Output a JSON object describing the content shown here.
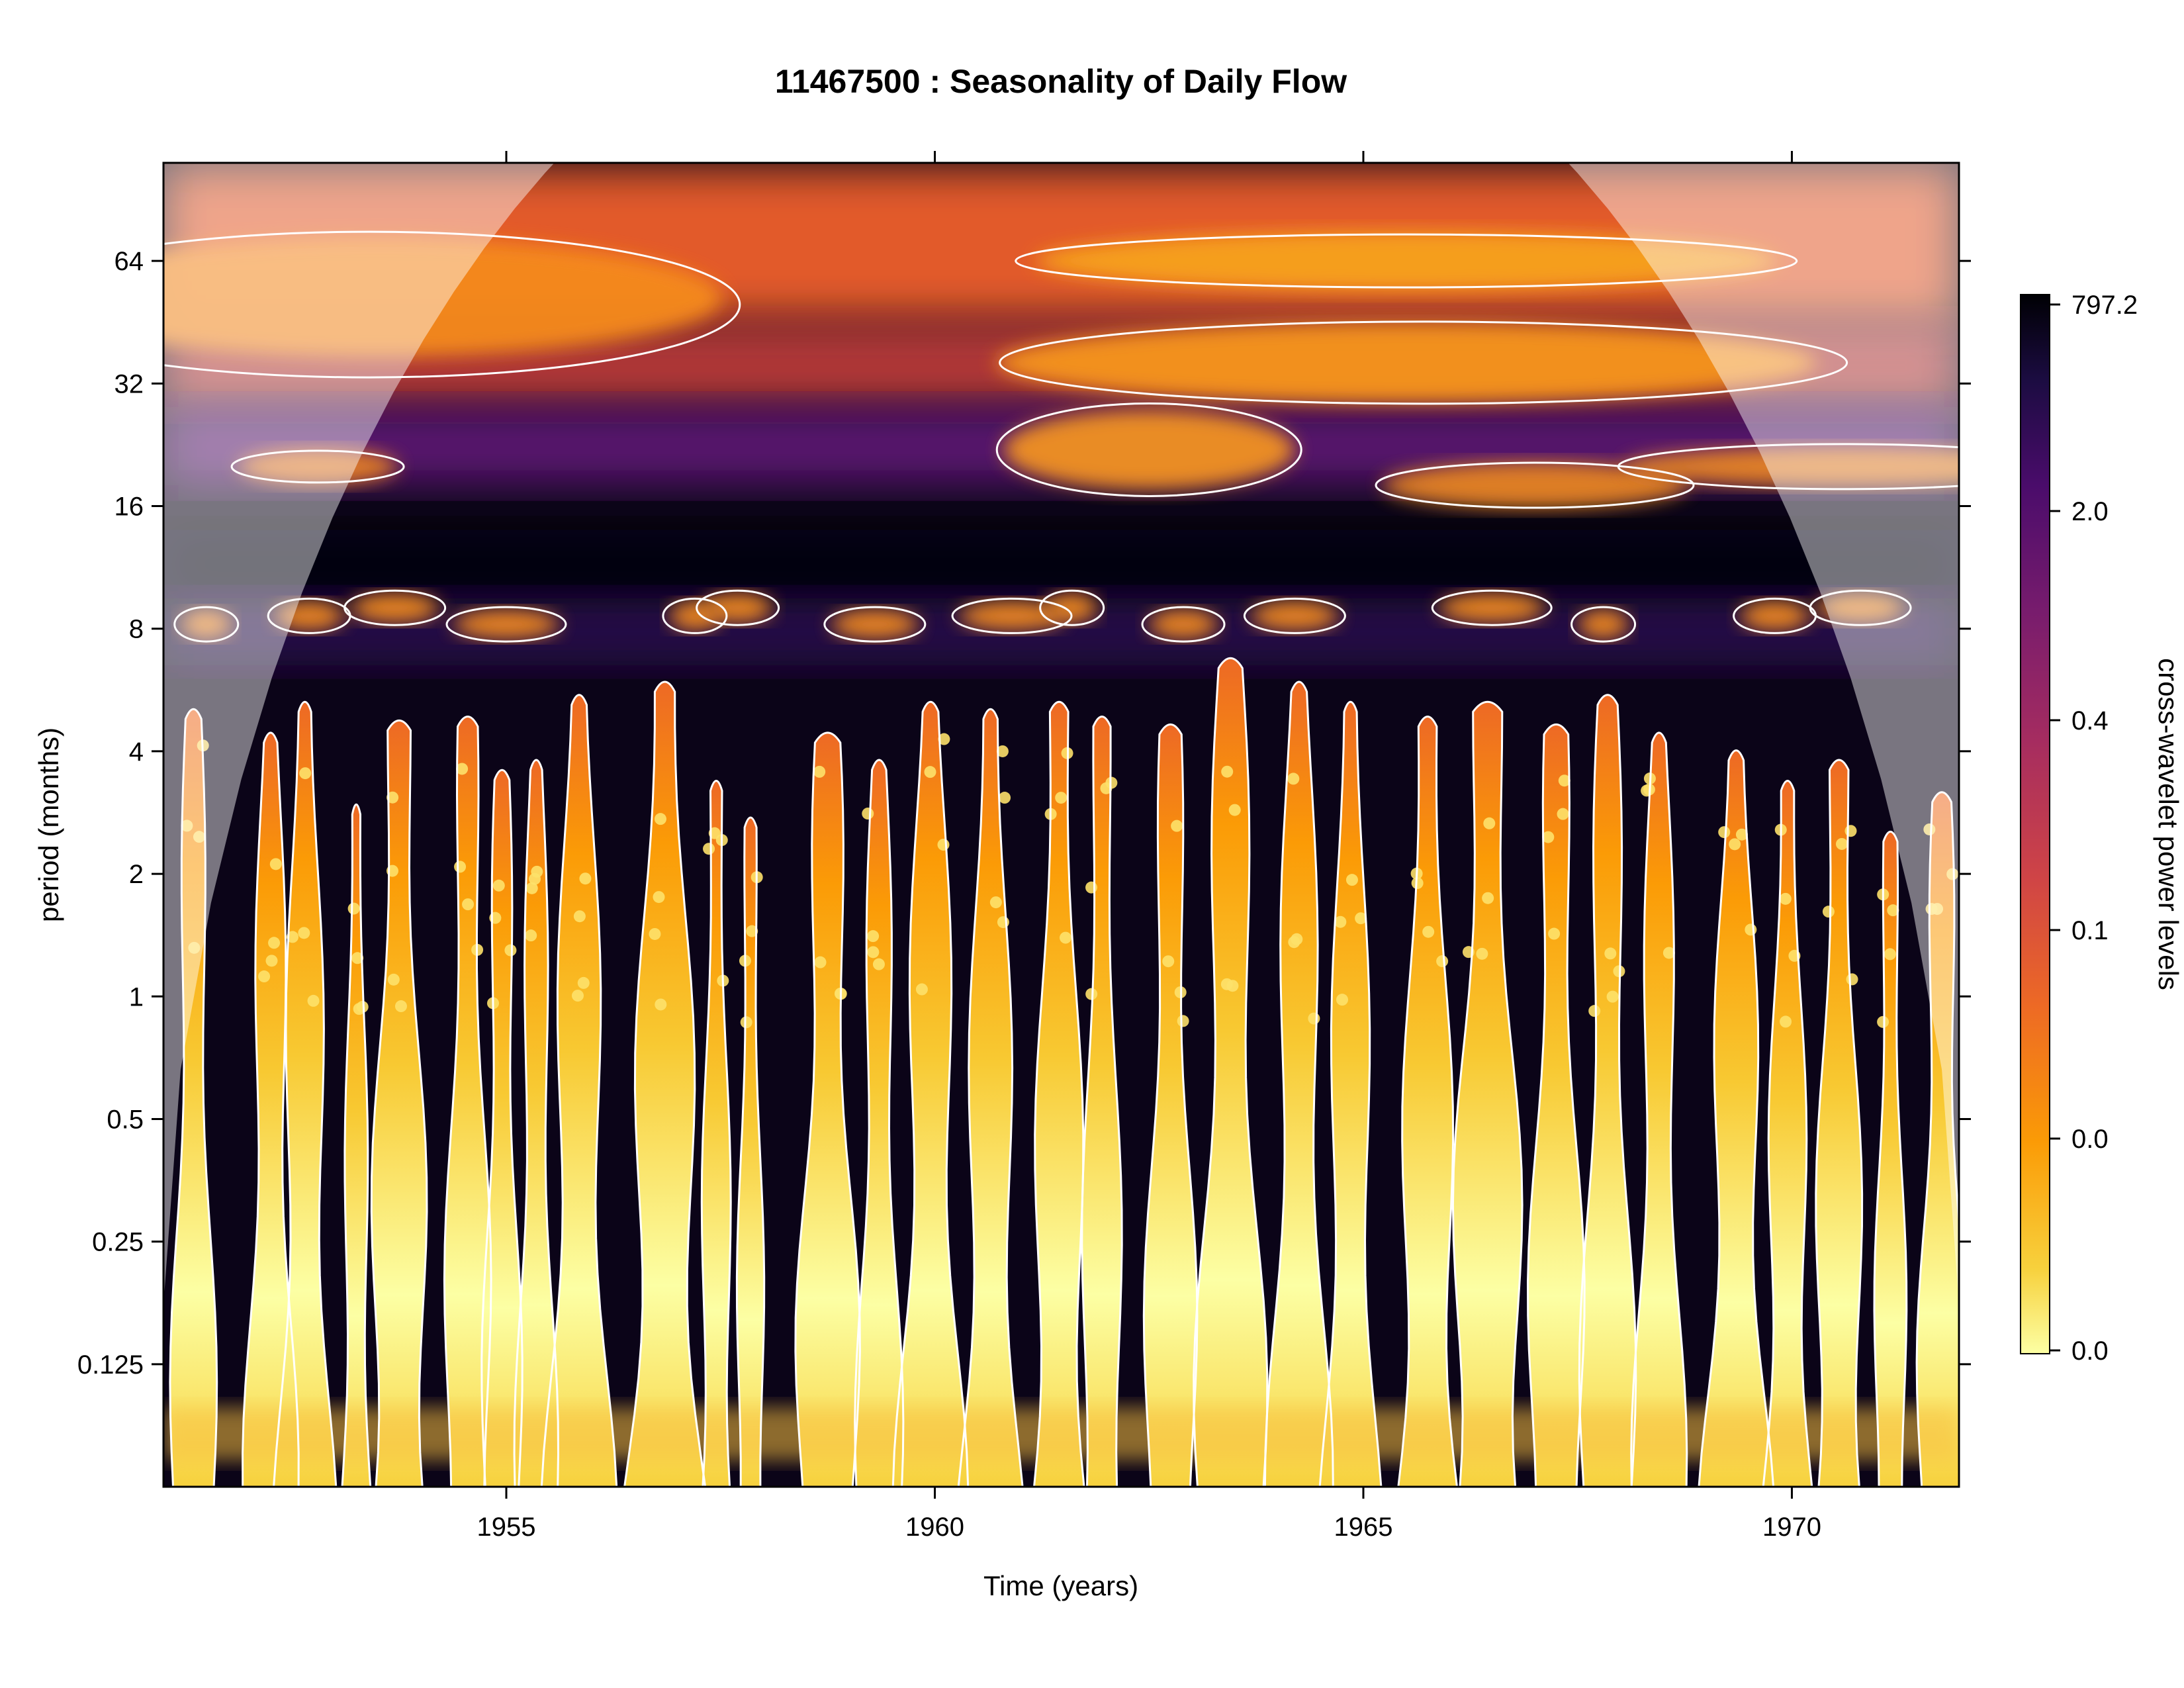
{
  "chart_data": {
    "type": "heatmap",
    "title": "11467500 : Seasonality of Daily Flow",
    "xlabel": "Time (years)",
    "ylabel": "period (months)",
    "xlim": [
      1951.0,
      1971.95
    ],
    "ylim_log2": [
      -4.0,
      6.8
    ],
    "y_scale": "log2",
    "x_ticks": [
      {
        "value": 1955,
        "label": "1955"
      },
      {
        "value": 1960,
        "label": "1960"
      },
      {
        "value": 1965,
        "label": "1965"
      },
      {
        "value": 1970,
        "label": "1970"
      }
    ],
    "y_ticks": [
      {
        "value": 0.125,
        "label": "0.125"
      },
      {
        "value": 0.25,
        "label": "0.25"
      },
      {
        "value": 0.5,
        "label": "0.5"
      },
      {
        "value": 1,
        "label": "1"
      },
      {
        "value": 2,
        "label": "2"
      },
      {
        "value": 4,
        "label": "4"
      },
      {
        "value": 8,
        "label": "8"
      },
      {
        "value": 16,
        "label": "16"
      },
      {
        "value": 32,
        "label": "32"
      },
      {
        "value": 64,
        "label": "64"
      }
    ],
    "colorbar": {
      "label": "cross-wavelet power levels",
      "tick_labels": [
        "0.0",
        "0.0",
        "0.1",
        "0.4",
        "2.0",
        "797.2"
      ],
      "colors": [
        "#fcffa4",
        "#f7d13d",
        "#fb9b06",
        "#ed6925",
        "#cf4446",
        "#a52c60",
        "#781c6d",
        "#4a0c6b",
        "#1b0c41",
        "#000004"
      ]
    },
    "grid": false,
    "legend": "colorbar-right",
    "overlays": [
      "cone of influence shading",
      "white significance contours"
    ]
  }
}
